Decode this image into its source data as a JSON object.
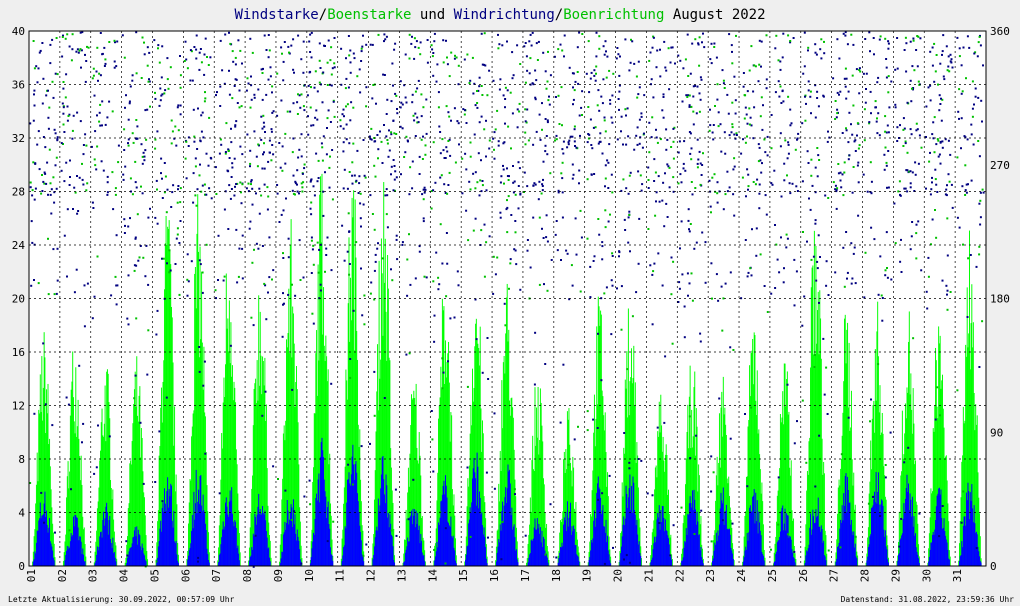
{
  "chart_data": {
    "type": "bar",
    "title": {
      "parts": [
        {
          "text": "Windstarke",
          "color": "#000080"
        },
        {
          "text": "/",
          "color": "#000000"
        },
        {
          "text": "Boenstarke",
          "color": "#00c000"
        },
        {
          "text": " und ",
          "color": "#000000"
        },
        {
          "text": "Windrichtung",
          "color": "#000080"
        },
        {
          "text": "/",
          "color": "#000000"
        },
        {
          "text": "Boenrichtung",
          "color": "#00c000"
        },
        {
          "text": " August 2022",
          "color": "#000000"
        }
      ]
    },
    "x_ticks": [
      "01",
      "02",
      "03",
      "04",
      "05",
      "06",
      "07",
      "08",
      "09",
      "10",
      "11",
      "12",
      "13",
      "14",
      "15",
      "16",
      "17",
      "18",
      "19",
      "20",
      "21",
      "22",
      "23",
      "24",
      "25",
      "26",
      "27",
      "28",
      "29",
      "30",
      "31"
    ],
    "y_left": {
      "range": [
        0,
        40
      ],
      "ticks": [
        0,
        4,
        8,
        12,
        16,
        20,
        24,
        28,
        32,
        36,
        40
      ]
    },
    "y_right": {
      "range": [
        0,
        360
      ],
      "ticks": [
        0,
        90,
        180,
        270,
        360
      ]
    },
    "grid": true,
    "series": [
      {
        "name": "Windstarke",
        "kind": "bar",
        "color": "#0000ff",
        "daily_peak": [
          6,
          4,
          5,
          3,
          8,
          8,
          7,
          6,
          6,
          10,
          10,
          9,
          5,
          7,
          9,
          8,
          4,
          5,
          7,
          8,
          5,
          6,
          6,
          6,
          5,
          6,
          7,
          8,
          7,
          6,
          7
        ]
      },
      {
        "name": "Boenstarke",
        "kind": "bar",
        "color": "#00ff00",
        "daily_peak": [
          18,
          18,
          16,
          16,
          28,
          28,
          26,
          23,
          26,
          30.5,
          30.5,
          30.5,
          15,
          23,
          23,
          22,
          15,
          12,
          21,
          21,
          14,
          16,
          15,
          20,
          16,
          28,
          20,
          20,
          20,
          20,
          26
        ]
      },
      {
        "name": "Windrichtung",
        "kind": "scatter",
        "color": "#000080",
        "range": [
          0,
          360
        ],
        "dominant": "W-NW, 250-340 deg"
      },
      {
        "name": "Boenrichtung",
        "kind": "scatter",
        "color": "#00c000",
        "range": [
          0,
          360
        ],
        "dominant": "W-NW, 250-340 deg"
      }
    ]
  },
  "footer": {
    "left": "Letzte Aktualisierung: 30.09.2022, 00:57:09 Uhr",
    "right": "Datenstand: 31.08.2022, 23:59:36 Uhr"
  },
  "colors": {
    "background": "#efefef",
    "plot": "#ffffff",
    "grid": "#000000"
  }
}
